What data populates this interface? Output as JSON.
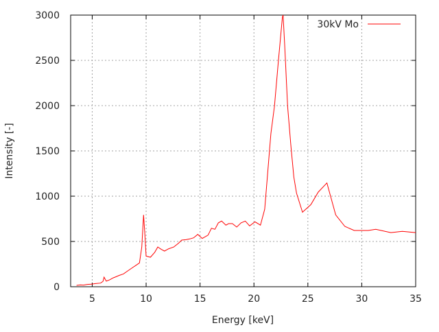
{
  "chart_data": {
    "type": "line",
    "title": "",
    "xlabel": "Energy [keV]",
    "ylabel": "Intensity [-]",
    "xlim": [
      3,
      35
    ],
    "ylim": [
      0,
      3000
    ],
    "xticks": [
      5,
      10,
      15,
      20,
      25,
      30,
      35
    ],
    "yticks": [
      0,
      500,
      1000,
      1500,
      2000,
      2500,
      3000
    ],
    "grid": true,
    "legend_position": "top-right",
    "series": [
      {
        "name": "30kV Mo",
        "color": "#ff0000",
        "x": [
          3.55,
          3.9,
          4.2,
          4.5,
          4.93,
          5.3,
          5.78,
          6.0,
          6.1,
          6.3,
          6.6,
          6.94,
          7.2,
          7.5,
          7.9,
          8.3,
          8.75,
          9.1,
          9.38,
          9.6,
          9.76,
          9.87,
          10.0,
          10.4,
          10.8,
          11.08,
          11.4,
          11.7,
          12.1,
          12.56,
          13.0,
          13.3,
          13.7,
          14.05,
          14.4,
          14.79,
          15.2,
          15.74,
          16.06,
          16.38,
          16.7,
          17.0,
          17.4,
          17.65,
          18.0,
          18.4,
          18.8,
          19.2,
          19.6,
          20.1,
          20.6,
          21.0,
          21.26,
          21.57,
          21.9,
          22.27,
          22.64,
          22.7,
          22.85,
          23.12,
          23.44,
          23.7,
          23.95,
          24.5,
          25.28,
          25.96,
          26.77,
          27.58,
          28.43,
          29.3,
          30.6,
          31.3,
          32.7,
          33.76,
          35.0
        ],
        "y": [
          15,
          20,
          18,
          25,
          28,
          35,
          40,
          60,
          106,
          61,
          75,
          98,
          110,
          125,
          142,
          175,
          212,
          240,
          263,
          439,
          793,
          604,
          339,
          326,
          380,
          439,
          414,
          394,
          420,
          439,
          480,
          515,
          520,
          528,
          540,
          578,
          533,
          570,
          646,
          634,
          705,
          725,
          680,
          697,
          697,
          659,
          705,
          725,
          672,
          717,
          680,
          856,
          1235,
          1690,
          1992,
          2498,
          2977,
          3000,
          2674,
          1992,
          1538,
          1210,
          1033,
          823,
          907,
          1045,
          1146,
          793,
          667,
          621,
          621,
          634,
          598,
          611,
          598
        ]
      }
    ]
  }
}
